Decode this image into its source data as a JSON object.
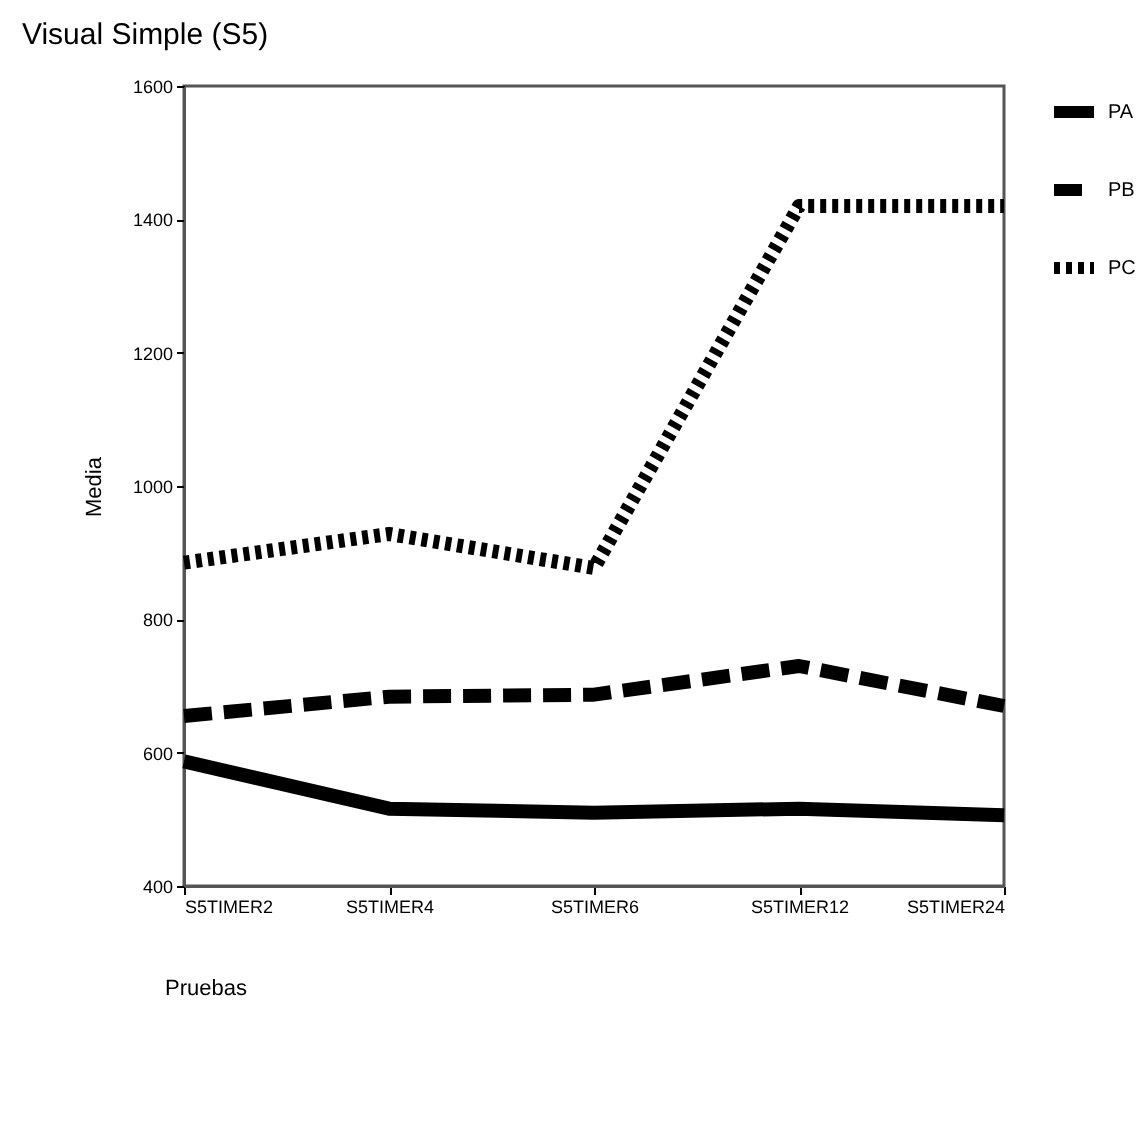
{
  "chart_data": {
    "type": "line",
    "title": "Visual Simple (S5)",
    "xlabel": "Pruebas",
    "ylabel": "Media",
    "categories": [
      "S5TIMER2",
      "S5TIMER4",
      "S5TIMER6",
      "S5TIMER12",
      "S5TIMER24"
    ],
    "series": [
      {
        "name": "PA",
        "color": "#000000",
        "line_style": "solid",
        "values": [
          587,
          516,
          510,
          516,
          506
        ]
      },
      {
        "name": "PB",
        "color": "#000000",
        "line_style": "dashed",
        "values": [
          655,
          684,
          687,
          730,
          670
        ]
      },
      {
        "name": "PC",
        "color": "#000000",
        "line_style": "dotted",
        "values": [
          885,
          928,
          877,
          1420,
          1420
        ]
      }
    ],
    "ylim": [
      400,
      1600
    ],
    "yticks": [
      400,
      600,
      800,
      1000,
      1200,
      1400,
      1600
    ],
    "grid": false,
    "legend": "right",
    "marker": "none"
  }
}
